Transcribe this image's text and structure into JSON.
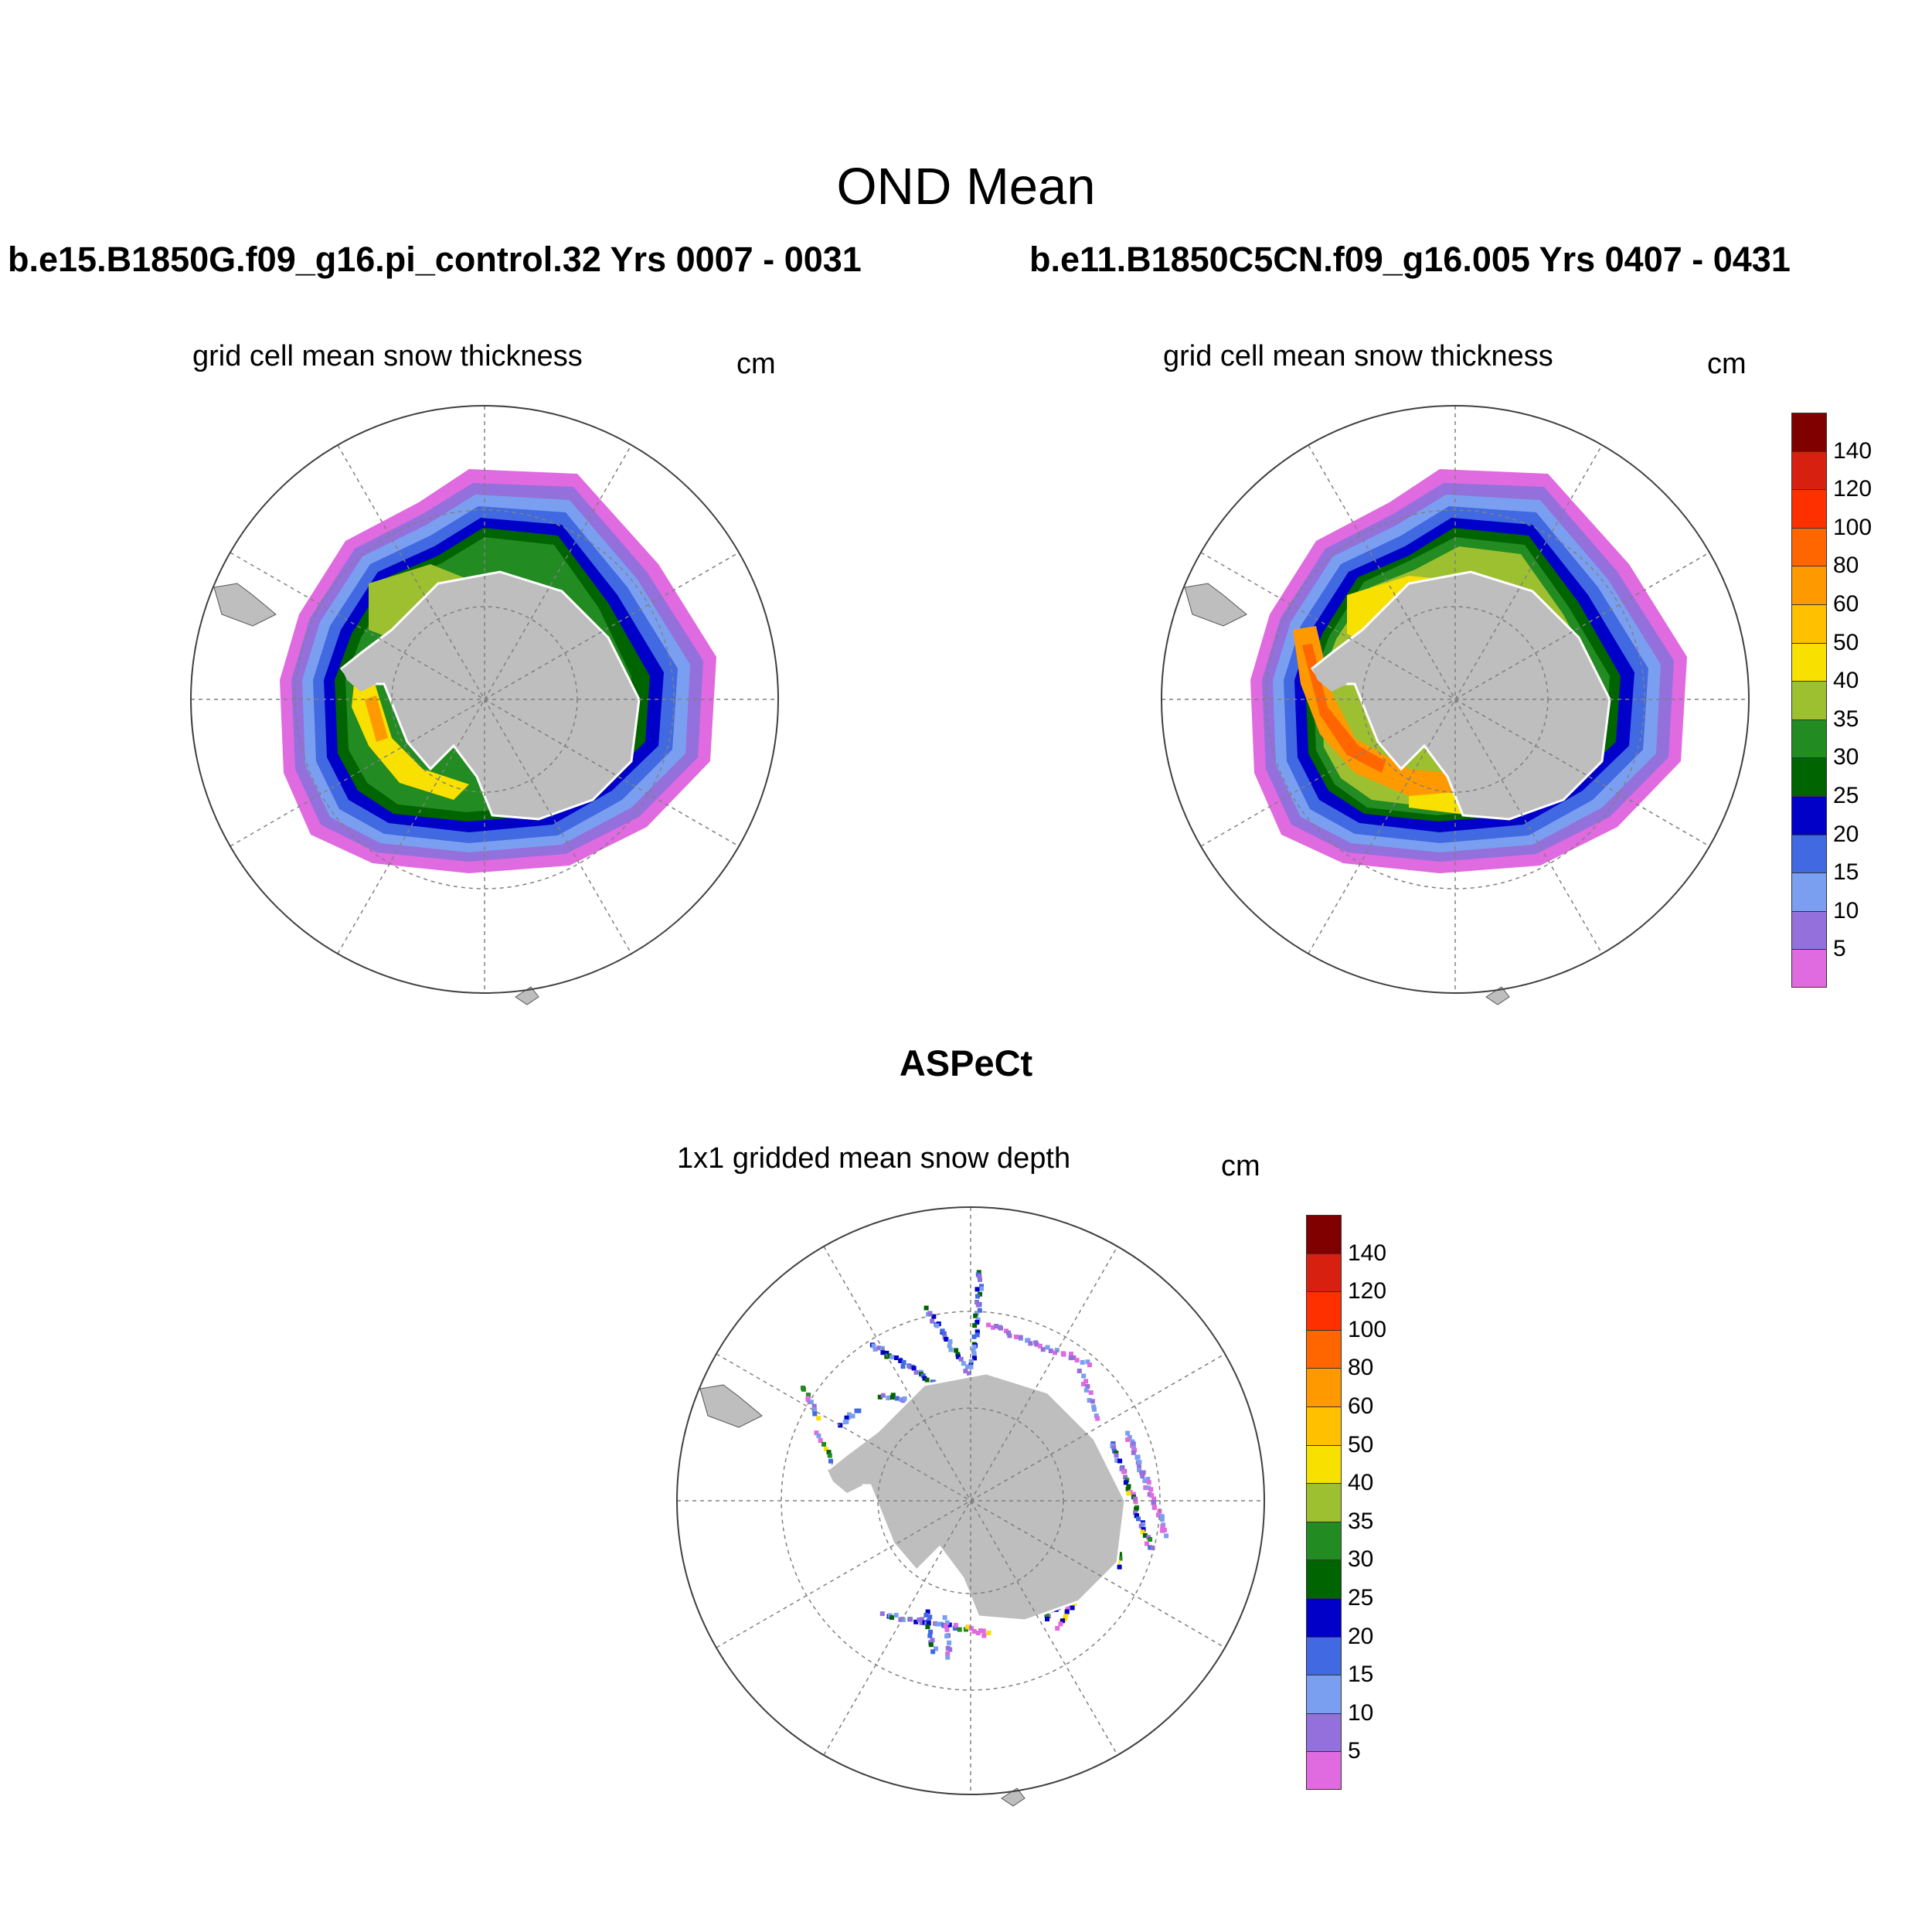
{
  "figure": {
    "title": "OND Mean",
    "observation_title": "ASPeCt"
  },
  "panels": [
    {
      "id": "left",
      "run_label": "b.e15.B1850G.f09_g16.pi_control.32  Yrs 0007 - 0031",
      "plot_title": "grid cell mean snow thickness",
      "units": "cm"
    },
    {
      "id": "right",
      "run_label": "b.e11.B1850C5CN.f09_g16.005  Yrs 0407 - 0431",
      "plot_title": "grid cell mean snow thickness",
      "units": "cm"
    },
    {
      "id": "bottom",
      "plot_title": "1x1 gridded mean snow depth",
      "units": "cm"
    }
  ],
  "colorbar": {
    "labels": [
      "140",
      "120",
      "100",
      "80",
      "60",
      "50",
      "40",
      "35",
      "30",
      "25",
      "20",
      "15",
      "10",
      "5"
    ],
    "colors": [
      "#800000",
      "#d82010",
      "#ff3000",
      "#ff6600",
      "#ff9900",
      "#ffc000",
      "#f8e000",
      "#9cc030",
      "#228b22",
      "#006400",
      "#0000c8",
      "#4169e1",
      "#7b9ff0",
      "#9370db",
      "#e06ae0"
    ]
  },
  "map_style": {
    "land": "#bebebe",
    "ocean": "#ffffff",
    "grid": "#808080"
  }
}
